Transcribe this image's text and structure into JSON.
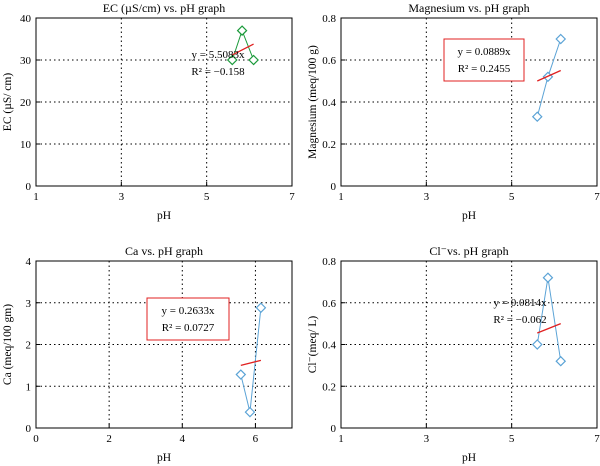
{
  "chart_data": [
    {
      "type": "scatter",
      "title": "EC (µS/cm) vs. pH graph",
      "xlabel": "pH",
      "ylabel": "EC (µS/ cm)",
      "xlim": [
        1,
        7
      ],
      "ylim": [
        0,
        40
      ],
      "xticks": [
        "1",
        "3",
        "5",
        "7"
      ],
      "yticks": [
        "0",
        "10",
        "20",
        "30",
        "40"
      ],
      "grid": true,
      "series": [
        {
          "x": [
            5.6,
            5.83,
            6.1
          ],
          "y": [
            30,
            37,
            30
          ],
          "color": "#1a9a3a",
          "marker": "diamond"
        }
      ],
      "trendline": {
        "x": [
          5.6,
          6.1
        ],
        "y": [
          31.2,
          33.8
        ],
        "color": "#e02020"
      },
      "equation": {
        "line1": "y = 5.5083x",
        "line2": "R² = −0.158",
        "boxed": false
      }
    },
    {
      "type": "scatter",
      "title": "Magnesium vs. pH graph",
      "xlabel": "pH",
      "ylabel": "Magnesium (meq/100 g)",
      "xlim": [
        1,
        7
      ],
      "ylim": [
        0,
        0.8
      ],
      "xticks": [
        "1",
        "3",
        "5",
        "7"
      ],
      "yticks": [
        "0",
        "0.2",
        "0.4",
        "0.6",
        "0.8"
      ],
      "grid": true,
      "series": [
        {
          "x": [
            5.6,
            5.85,
            6.15
          ],
          "y": [
            0.33,
            0.52,
            0.7
          ],
          "color": "#5ba3d6",
          "marker": "diamond"
        }
      ],
      "trendline": {
        "x": [
          5.6,
          6.15
        ],
        "y": [
          0.5,
          0.55
        ],
        "color": "#e02020"
      },
      "equation": {
        "line1": "y = 0.0889x",
        "line2": "R² = 0.2455",
        "boxed": true
      }
    },
    {
      "type": "scatter",
      "title": "Ca vs. pH graph",
      "xlabel": "pH",
      "ylabel": "Ca (meq/100 gm)",
      "xlim": [
        0,
        7
      ],
      "ylim": [
        0,
        4
      ],
      "xticks": [
        "0",
        "2",
        "4",
        "6"
      ],
      "yticks": [
        "0",
        "1",
        "2",
        "3",
        "4"
      ],
      "grid": true,
      "series": [
        {
          "x": [
            5.6,
            5.85,
            6.15
          ],
          "y": [
            1.28,
            0.38,
            2.88
          ],
          "color": "#5ba3d6",
          "marker": "diamond"
        }
      ],
      "trendline": {
        "x": [
          5.6,
          6.15
        ],
        "y": [
          1.5,
          1.62
        ],
        "color": "#e02020"
      },
      "equation": {
        "line1": "y = 0.2633x",
        "line2": "R² = 0.0727",
        "boxed": true
      }
    },
    {
      "type": "scatter",
      "title": "Cl⁻vs. pH graph",
      "xlabel": "pH",
      "ylabel": "Cl⁻(meq/ L)",
      "xlim": [
        1,
        7
      ],
      "ylim": [
        0,
        0.8
      ],
      "xticks": [
        "1",
        "3",
        "5",
        "7"
      ],
      "yticks": [
        "0",
        "0.2",
        "0.4",
        "0.6",
        "0.8"
      ],
      "grid": true,
      "series": [
        {
          "x": [
            5.6,
            5.85,
            6.15
          ],
          "y": [
            0.4,
            0.72,
            0.32
          ],
          "color": "#5ba3d6",
          "marker": "diamond"
        }
      ],
      "trendline": {
        "x": [
          5.6,
          6.15
        ],
        "y": [
          0.455,
          0.5
        ],
        "color": "#e02020"
      },
      "equation": {
        "line1": "y = 0.0814x",
        "line2": "R² = −0.062",
        "boxed": false
      }
    }
  ]
}
